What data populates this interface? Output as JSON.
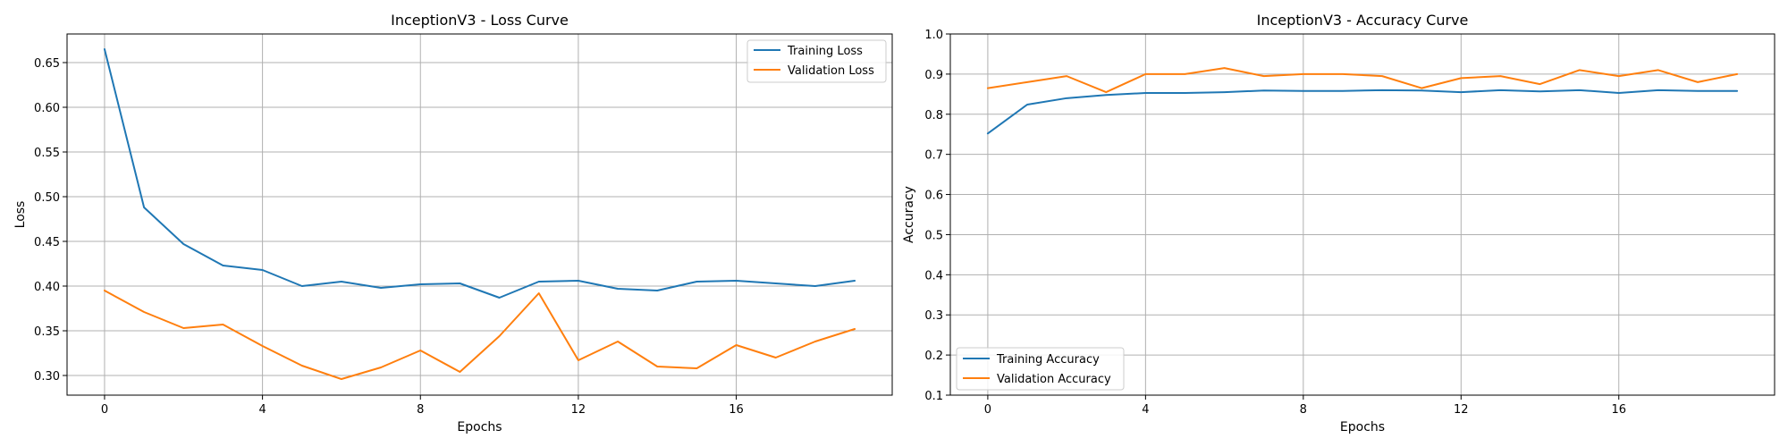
{
  "colors": {
    "training": "#1f77b4",
    "validation": "#ff7f0e",
    "grid": "#b0b0b0"
  },
  "chart_data": [
    {
      "type": "line",
      "title": "InceptionV3 - Loss Curve",
      "xlabel": "Epochs",
      "ylabel": "Loss",
      "x": [
        0,
        1,
        2,
        3,
        4,
        5,
        6,
        7,
        8,
        9,
        10,
        11,
        12,
        13,
        14,
        15,
        16,
        17,
        18,
        19
      ],
      "xlim": [
        -0.95,
        19.95
      ],
      "ylim": [
        0.278,
        0.682
      ],
      "xticks": [
        0,
        4,
        8,
        12,
        16
      ],
      "xtick_labels": [
        "0",
        "4",
        "8",
        "12",
        "16"
      ],
      "yticks": [
        0.3,
        0.35,
        0.4,
        0.45,
        0.5,
        0.55,
        0.6,
        0.65
      ],
      "ytick_labels": [
        "0.30",
        "0.35",
        "0.40",
        "0.45",
        "0.50",
        "0.55",
        "0.60",
        "0.65"
      ],
      "grid": true,
      "legend_loc": "upper right",
      "series": [
        {
          "name": "Training Loss",
          "color": "#1f77b4",
          "values": [
            0.665,
            0.488,
            0.447,
            0.423,
            0.418,
            0.4,
            0.405,
            0.398,
            0.402,
            0.403,
            0.387,
            0.405,
            0.406,
            0.397,
            0.395,
            0.405,
            0.406,
            0.403,
            0.4,
            0.406
          ]
        },
        {
          "name": "Validation Loss",
          "color": "#ff7f0e",
          "values": [
            0.395,
            0.371,
            0.353,
            0.357,
            0.333,
            0.311,
            0.296,
            0.309,
            0.328,
            0.304,
            0.344,
            0.392,
            0.317,
            0.338,
            0.31,
            0.308,
            0.334,
            0.32,
            0.338,
            0.352
          ]
        }
      ]
    },
    {
      "type": "line",
      "title": "InceptionV3 - Accuracy Curve",
      "xlabel": "Epochs",
      "ylabel": "Accuracy",
      "x": [
        0,
        1,
        2,
        3,
        4,
        5,
        6,
        7,
        8,
        9,
        10,
        11,
        12,
        13,
        14,
        15,
        16,
        17,
        18,
        19
      ],
      "xlim": [
        -0.95,
        19.95
      ],
      "ylim": [
        0.1,
        1.0
      ],
      "xticks": [
        0,
        4,
        8,
        12,
        16
      ],
      "xtick_labels": [
        "0",
        "4",
        "8",
        "12",
        "16"
      ],
      "yticks": [
        0.1,
        0.2,
        0.3,
        0.4,
        0.5,
        0.6,
        0.7,
        0.8,
        0.9,
        1.0
      ],
      "ytick_labels": [
        "0.1",
        "0.2",
        "0.3",
        "0.4",
        "0.5",
        "0.6",
        "0.7",
        "0.8",
        "0.9",
        "1.0"
      ],
      "grid": true,
      "legend_loc": "lower left",
      "series": [
        {
          "name": "Training Accuracy",
          "color": "#1f77b4",
          "values": [
            0.752,
            0.824,
            0.84,
            0.848,
            0.853,
            0.853,
            0.855,
            0.859,
            0.858,
            0.858,
            0.86,
            0.859,
            0.855,
            0.86,
            0.857,
            0.86,
            0.853,
            0.86,
            0.858,
            0.858
          ]
        },
        {
          "name": "Validation Accuracy",
          "color": "#ff7f0e",
          "values": [
            0.865,
            0.88,
            0.895,
            0.855,
            0.9,
            0.9,
            0.915,
            0.895,
            0.9,
            0.9,
            0.895,
            0.865,
            0.89,
            0.895,
            0.875,
            0.91,
            0.895,
            0.91,
            0.88,
            0.9
          ]
        }
      ]
    }
  ]
}
